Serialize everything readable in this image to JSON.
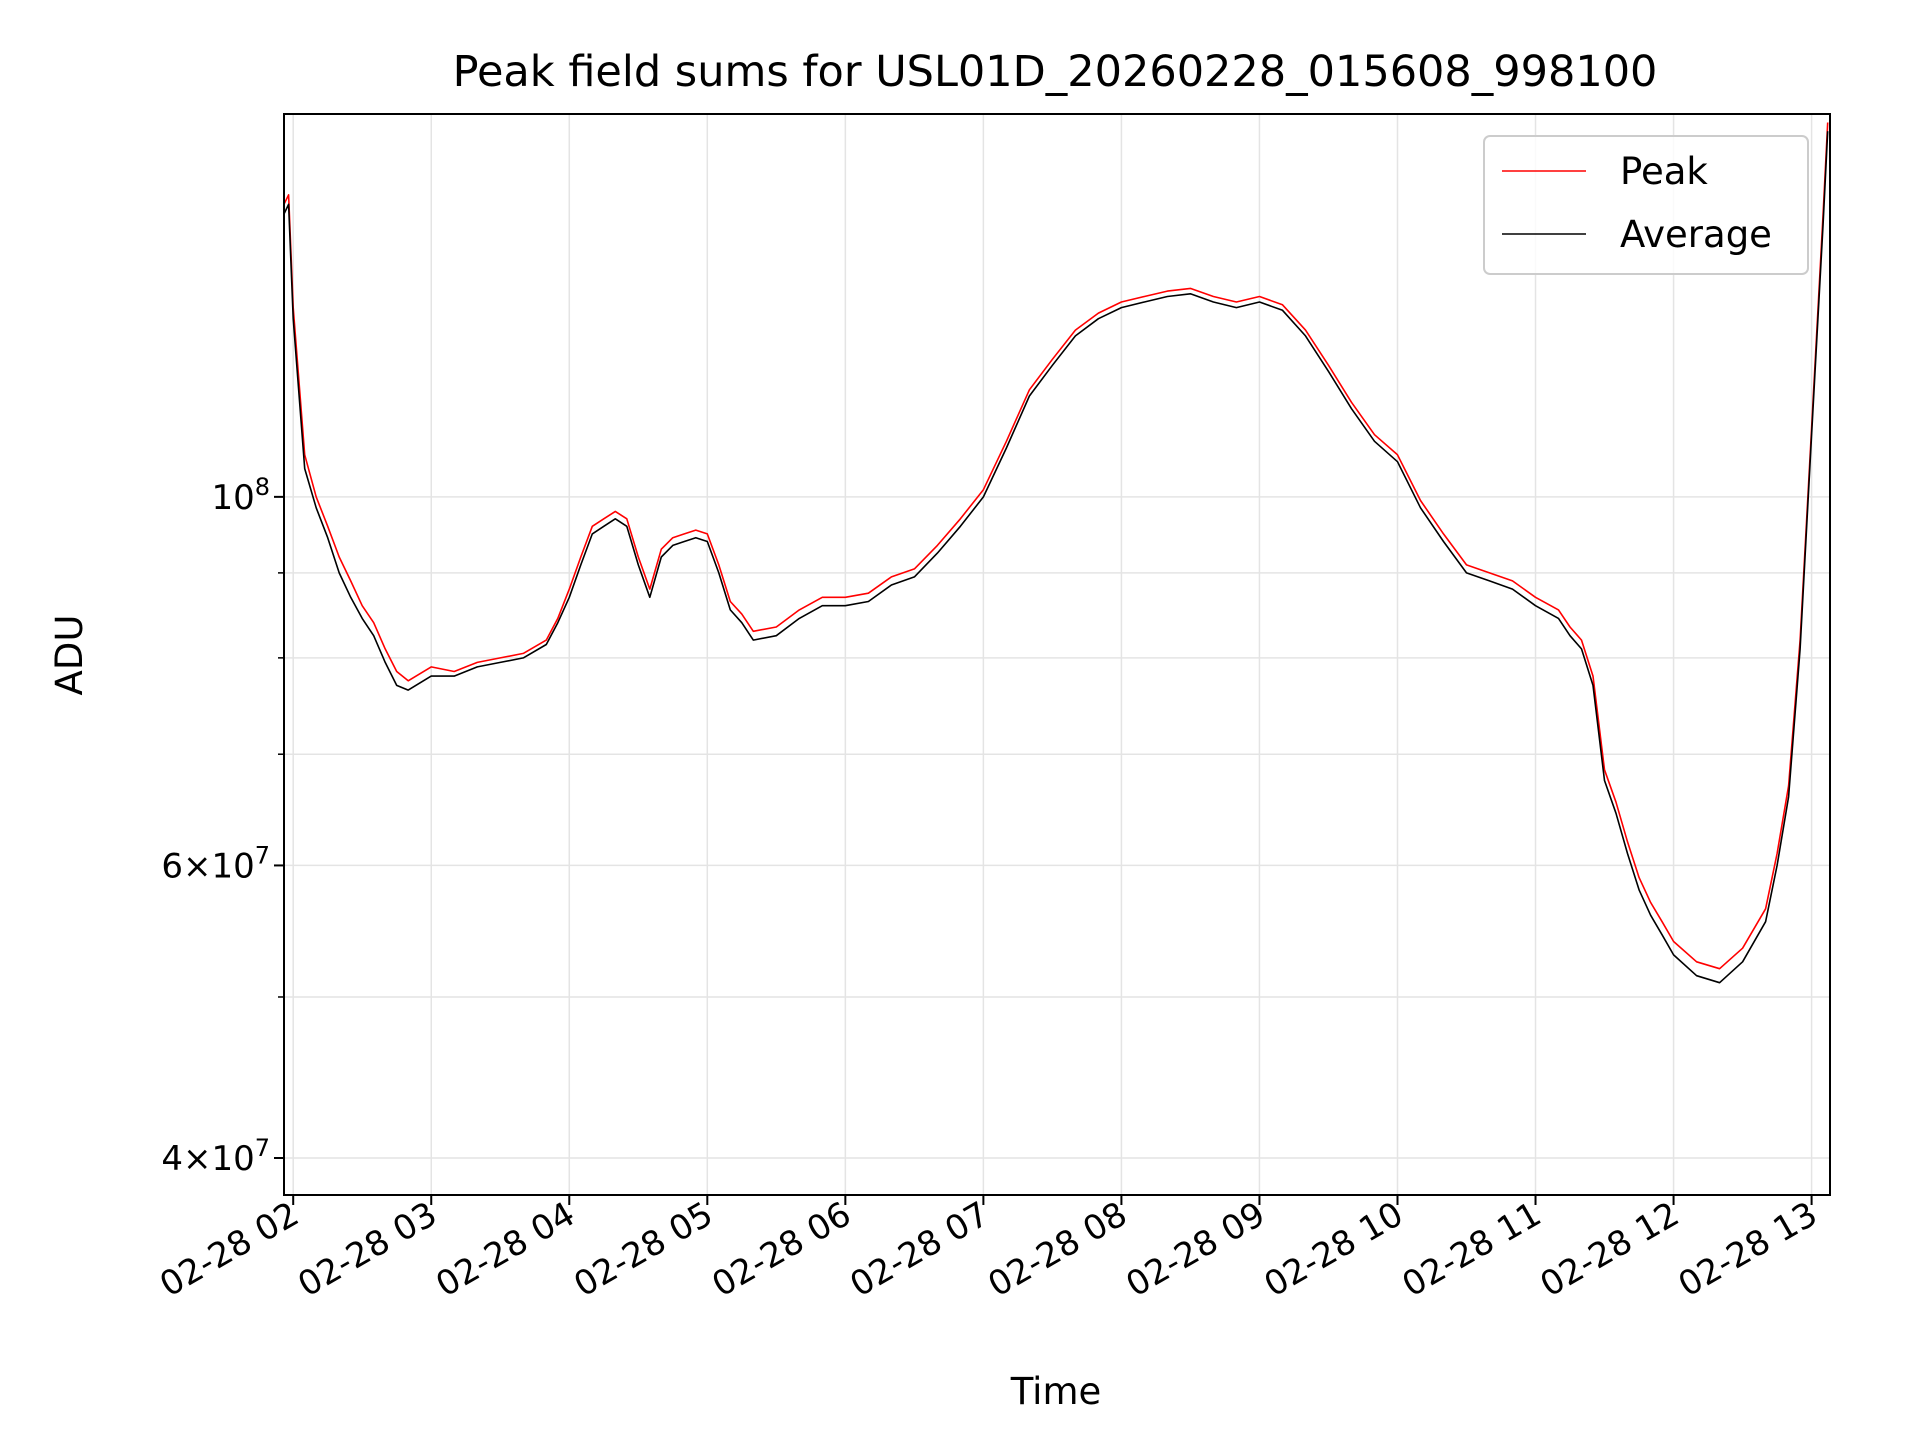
{
  "chart_data": {
    "type": "line",
    "title": "Peak field sums for USL01D_20260228_015608_998100",
    "xlabel": "Time",
    "ylabel": "ADU",
    "yscale": "log",
    "ylim": [
      38000000,
      170000000
    ],
    "xlim": [
      "2026-02-28 01:56",
      "2026-02-28 13:08"
    ],
    "grid": true,
    "legend": "top-right",
    "x_tick_labels": [
      "02-28 02",
      "02-28 03",
      "02-28 04",
      "02-28 05",
      "02-28 06",
      "02-28 07",
      "02-28 08",
      "02-28 09",
      "02-28 10",
      "02-28 11",
      "02-28 12",
      "02-28 13"
    ],
    "y_major_ticks": [
      {
        "value": 40000000,
        "mant": "4",
        "exp": "7"
      },
      {
        "value": 60000000,
        "mant": "6",
        "exp": "7"
      },
      {
        "value": 100000000,
        "mant": "",
        "exp": "8"
      }
    ],
    "y_minor_gridlines": [
      50000000,
      70000000,
      80000000,
      90000000
    ],
    "series": [
      {
        "name": "Peak",
        "color": "#ff0000",
        "x": [
          "2026-02-28 01:56",
          "2026-02-28 01:58",
          "2026-02-28 02:00",
          "2026-02-28 02:05",
          "2026-02-28 02:10",
          "2026-02-28 02:15",
          "2026-02-28 02:20",
          "2026-02-28 02:25",
          "2026-02-28 02:30",
          "2026-02-28 02:35",
          "2026-02-28 02:40",
          "2026-02-28 02:45",
          "2026-02-28 02:50",
          "2026-02-28 03:00",
          "2026-02-28 03:10",
          "2026-02-28 03:20",
          "2026-02-28 03:30",
          "2026-02-28 03:40",
          "2026-02-28 03:50",
          "2026-02-28 03:55",
          "2026-02-28 04:00",
          "2026-02-28 04:05",
          "2026-02-28 04:10",
          "2026-02-28 04:15",
          "2026-02-28 04:20",
          "2026-02-28 04:25",
          "2026-02-28 04:30",
          "2026-02-28 04:35",
          "2026-02-28 04:40",
          "2026-02-28 04:45",
          "2026-02-28 04:50",
          "2026-02-28 04:55",
          "2026-02-28 05:00",
          "2026-02-28 05:05",
          "2026-02-28 05:10",
          "2026-02-28 05:15",
          "2026-02-28 05:20",
          "2026-02-28 05:30",
          "2026-02-28 05:40",
          "2026-02-28 05:50",
          "2026-02-28 06:00",
          "2026-02-28 06:10",
          "2026-02-28 06:20",
          "2026-02-28 06:30",
          "2026-02-28 06:40",
          "2026-02-28 06:50",
          "2026-02-28 07:00",
          "2026-02-28 07:10",
          "2026-02-28 07:20",
          "2026-02-28 07:30",
          "2026-02-28 07:40",
          "2026-02-28 07:50",
          "2026-02-28 08:00",
          "2026-02-28 08:10",
          "2026-02-28 08:20",
          "2026-02-28 08:30",
          "2026-02-28 08:40",
          "2026-02-28 08:50",
          "2026-02-28 09:00",
          "2026-02-28 09:10",
          "2026-02-28 09:20",
          "2026-02-28 09:30",
          "2026-02-28 09:40",
          "2026-02-28 09:50",
          "2026-02-28 10:00",
          "2026-02-28 10:10",
          "2026-02-28 10:20",
          "2026-02-28 10:30",
          "2026-02-28 10:40",
          "2026-02-28 10:50",
          "2026-02-28 11:00",
          "2026-02-28 11:10",
          "2026-02-28 11:15",
          "2026-02-28 11:20",
          "2026-02-28 11:25",
          "2026-02-28 11:30",
          "2026-02-28 11:35",
          "2026-02-28 11:40",
          "2026-02-28 11:45",
          "2026-02-28 11:50",
          "2026-02-28 11:55",
          "2026-02-28 12:00",
          "2026-02-28 12:10",
          "2026-02-28 12:20",
          "2026-02-28 12:30",
          "2026-02-28 12:40",
          "2026-02-28 12:45",
          "2026-02-28 12:50",
          "2026-02-28 12:55",
          "2026-02-28 13:00",
          "2026-02-28 13:05",
          "2026-02-28 13:07"
        ],
        "values": [
          150000000,
          152000000,
          130000000,
          106000000,
          100000000,
          96000000,
          92000000,
          89000000,
          86000000,
          84000000,
          81000000,
          78500000,
          77500000,
          79000000,
          78500000,
          79500000,
          80000000,
          80500000,
          82000000,
          84500000,
          88000000,
          92000000,
          96000000,
          97000000,
          98000000,
          97000000,
          92000000,
          88000000,
          93000000,
          94500000,
          95000000,
          95500000,
          95000000,
          91000000,
          86500000,
          85000000,
          83000000,
          83500000,
          85500000,
          87000000,
          87000000,
          87500000,
          89500000,
          90500000,
          93500000,
          97000000,
          101000000,
          108000000,
          116000000,
          121000000,
          126000000,
          129000000,
          131000000,
          132000000,
          133000000,
          133500000,
          132000000,
          131000000,
          132000000,
          130500000,
          126000000,
          120000000,
          114000000,
          109000000,
          106000000,
          99500000,
          95000000,
          91000000,
          90000000,
          89000000,
          87000000,
          85500000,
          83500000,
          82000000,
          78000000,
          68500000,
          65500000,
          62000000,
          59000000,
          57000000,
          55500000,
          54000000,
          52500000,
          52000000,
          53500000,
          56500000,
          61000000,
          67000000,
          82000000,
          110000000,
          148000000,
          168000000
        ]
      },
      {
        "name": "Average",
        "color": "#000000",
        "x": [
          "2026-02-28 01:56",
          "2026-02-28 01:58",
          "2026-02-28 02:00",
          "2026-02-28 02:05",
          "2026-02-28 02:10",
          "2026-02-28 02:15",
          "2026-02-28 02:20",
          "2026-02-28 02:25",
          "2026-02-28 02:30",
          "2026-02-28 02:35",
          "2026-02-28 02:40",
          "2026-02-28 02:45",
          "2026-02-28 02:50",
          "2026-02-28 03:00",
          "2026-02-28 03:10",
          "2026-02-28 03:20",
          "2026-02-28 03:30",
          "2026-02-28 03:40",
          "2026-02-28 03:50",
          "2026-02-28 03:55",
          "2026-02-28 04:00",
          "2026-02-28 04:05",
          "2026-02-28 04:10",
          "2026-02-28 04:15",
          "2026-02-28 04:20",
          "2026-02-28 04:25",
          "2026-02-28 04:30",
          "2026-02-28 04:35",
          "2026-02-28 04:40",
          "2026-02-28 04:45",
          "2026-02-28 04:50",
          "2026-02-28 04:55",
          "2026-02-28 05:00",
          "2026-02-28 05:05",
          "2026-02-28 05:10",
          "2026-02-28 05:15",
          "2026-02-28 05:20",
          "2026-02-28 05:30",
          "2026-02-28 05:40",
          "2026-02-28 05:50",
          "2026-02-28 06:00",
          "2026-02-28 06:10",
          "2026-02-28 06:20",
          "2026-02-28 06:30",
          "2026-02-28 06:40",
          "2026-02-28 06:50",
          "2026-02-28 07:00",
          "2026-02-28 07:10",
          "2026-02-28 07:20",
          "2026-02-28 07:30",
          "2026-02-28 07:40",
          "2026-02-28 07:50",
          "2026-02-28 08:00",
          "2026-02-28 08:10",
          "2026-02-28 08:20",
          "2026-02-28 08:30",
          "2026-02-28 08:40",
          "2026-02-28 08:50",
          "2026-02-28 09:00",
          "2026-02-28 09:10",
          "2026-02-28 09:20",
          "2026-02-28 09:30",
          "2026-02-28 09:40",
          "2026-02-28 09:50",
          "2026-02-28 10:00",
          "2026-02-28 10:10",
          "2026-02-28 10:20",
          "2026-02-28 10:30",
          "2026-02-28 10:40",
          "2026-02-28 10:50",
          "2026-02-28 11:00",
          "2026-02-28 11:10",
          "2026-02-28 11:15",
          "2026-02-28 11:20",
          "2026-02-28 11:25",
          "2026-02-28 11:30",
          "2026-02-28 11:35",
          "2026-02-28 11:40",
          "2026-02-28 11:45",
          "2026-02-28 11:50",
          "2026-02-28 11:55",
          "2026-02-28 12:00",
          "2026-02-28 12:10",
          "2026-02-28 12:20",
          "2026-02-28 12:30",
          "2026-02-28 12:40",
          "2026-02-28 12:45",
          "2026-02-28 12:50",
          "2026-02-28 12:55",
          "2026-02-28 13:00",
          "2026-02-28 13:05",
          "2026-02-28 13:07"
        ],
        "values": [
          148000000,
          150000000,
          128000000,
          104000000,
          98500000,
          94500000,
          90000000,
          87000000,
          84500000,
          82500000,
          79500000,
          77000000,
          76500000,
          78000000,
          78000000,
          79000000,
          79500000,
          80000000,
          81500000,
          84000000,
          87000000,
          91000000,
          95000000,
          96000000,
          97000000,
          96000000,
          91000000,
          87000000,
          92000000,
          93500000,
          94000000,
          94500000,
          94000000,
          90000000,
          85500000,
          84000000,
          82000000,
          82500000,
          84500000,
          86000000,
          86000000,
          86500000,
          88500000,
          89500000,
          92500000,
          96000000,
          100000000,
          107000000,
          115000000,
          120000000,
          125000000,
          128000000,
          130000000,
          131000000,
          132000000,
          132500000,
          131000000,
          130000000,
          131000000,
          129500000,
          125000000,
          119000000,
          113000000,
          108000000,
          105000000,
          98500000,
          94000000,
          90000000,
          89000000,
          88000000,
          86000000,
          84500000,
          82500000,
          81000000,
          77000000,
          67500000,
          64500000,
          61000000,
          58000000,
          56000000,
          54500000,
          53000000,
          51500000,
          51000000,
          52500000,
          55500000,
          60000000,
          66000000,
          81000000,
          109000000,
          146000000,
          166000000
        ]
      }
    ]
  }
}
